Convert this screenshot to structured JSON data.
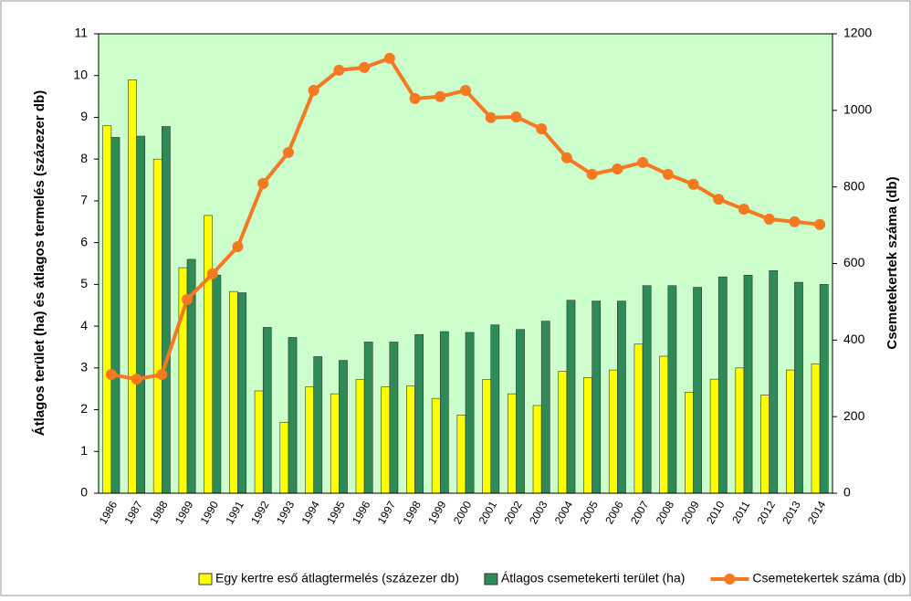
{
  "chart_data": {
    "type": "bar",
    "categories": [
      "1986",
      "1987",
      "1988",
      "1989",
      "1990",
      "1991",
      "1992",
      "1993",
      "1994",
      "1995",
      "1996",
      "1997",
      "1998",
      "1999",
      "2000",
      "2001",
      "2002",
      "2003",
      "2004",
      "2005",
      "2006",
      "2007",
      "2008",
      "2009",
      "2010",
      "2011",
      "2012",
      "2013",
      "2014"
    ],
    "y_label": "Átlagos terület (ha) és átlagos termelés (százezer db)",
    "y2_label": "Csemetekertek száma (db)",
    "ylim": [
      0,
      11
    ],
    "yticks": [
      0,
      1,
      2,
      3,
      4,
      5,
      6,
      7,
      8,
      9,
      10,
      11
    ],
    "y2lim": [
      0,
      1200
    ],
    "y2ticks": [
      0,
      200,
      400,
      600,
      800,
      1000,
      1200
    ],
    "plot_background": "#ccffcc",
    "legend": "bottom",
    "series": [
      {
        "name": "Egy kertre eső átlagtermelés (százezer db)",
        "type": "bar",
        "color": "#ffff00",
        "values": [
          8.8,
          9.9,
          8.0,
          5.4,
          6.65,
          4.83,
          2.45,
          1.7,
          2.55,
          2.38,
          2.72,
          2.55,
          2.57,
          2.27,
          1.87,
          2.72,
          2.38,
          2.1,
          2.92,
          2.77,
          2.95,
          3.57,
          3.28,
          2.42,
          2.73,
          3.0,
          2.35,
          2.95,
          3.1
        ]
      },
      {
        "name": "Átlagos csemetekerti terület (ha)",
        "type": "bar",
        "color": "#2e8b57",
        "values": [
          8.52,
          8.55,
          8.78,
          5.6,
          5.22,
          4.8,
          3.97,
          3.73,
          3.27,
          3.18,
          3.62,
          3.62,
          3.8,
          3.87,
          3.85,
          4.03,
          3.92,
          4.12,
          4.62,
          4.6,
          4.6,
          4.97,
          4.97,
          4.93,
          5.18,
          5.22,
          5.33,
          5.05,
          5.0
        ]
      },
      {
        "name": "Csemetekertek száma (db)",
        "type": "line",
        "axis": "y2",
        "color": "#f47920",
        "values": [
          310,
          298,
          310,
          506,
          573,
          644,
          809,
          890,
          1052,
          1105,
          1112,
          1136,
          1031,
          1036,
          1052,
          981,
          983,
          952,
          876,
          833,
          847,
          864,
          833,
          807,
          768,
          742,
          716,
          709,
          702
        ]
      }
    ]
  }
}
